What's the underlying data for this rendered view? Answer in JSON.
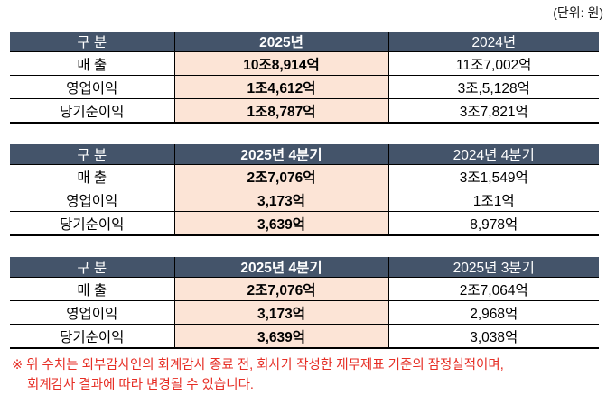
{
  "unit_label": "(단위: 원)",
  "colors": {
    "header_bg": "#44546A",
    "header_text": "#FFFFFF",
    "highlight_bg": "#FCE4D6",
    "border": "#000000",
    "note_text": "#E62E25"
  },
  "tables": [
    {
      "name": "annual-comparison",
      "headers": [
        "구 분",
        "2025년",
        "2024년"
      ],
      "rows": [
        {
          "label": "매 출",
          "current": "10조8,914억",
          "compare": "11조7,002억"
        },
        {
          "label": "영업이익",
          "current": "1조4,612억",
          "compare": "3조,5,128억"
        },
        {
          "label": "당기순이익",
          "current": "1조8,787억",
          "compare": "3조7,821억"
        }
      ]
    },
    {
      "name": "quarter-yoy-comparison",
      "headers": [
        "구 분",
        "2025년 4분기",
        "2024년 4분기"
      ],
      "rows": [
        {
          "label": "매 출",
          "current": "2조7,076억",
          "compare": "3조1,549억"
        },
        {
          "label": "영업이익",
          "current": "3,173억",
          "compare": "1조1억"
        },
        {
          "label": "당기순이익",
          "current": "3,639억",
          "compare": "8,978억"
        }
      ]
    },
    {
      "name": "quarter-qoq-comparison",
      "headers": [
        "구 분",
        "2025년 4분기",
        "2025년 3분기"
      ],
      "rows": [
        {
          "label": "매 출",
          "current": "2조7,076억",
          "compare": "2조7,064억"
        },
        {
          "label": "영업이익",
          "current": "3,173억",
          "compare": "2,968억"
        },
        {
          "label": "당기순이익",
          "current": "3,639억",
          "compare": "3,038억"
        }
      ]
    }
  ],
  "footnote": {
    "line1": "※ 위 수치는 외부감사인의 회계감사 종료 전, 회사가 작성한 재무제표 기준의 잠정실적이며,",
    "line2": "회계감사 결과에 따라 변경될 수 있습니다."
  }
}
